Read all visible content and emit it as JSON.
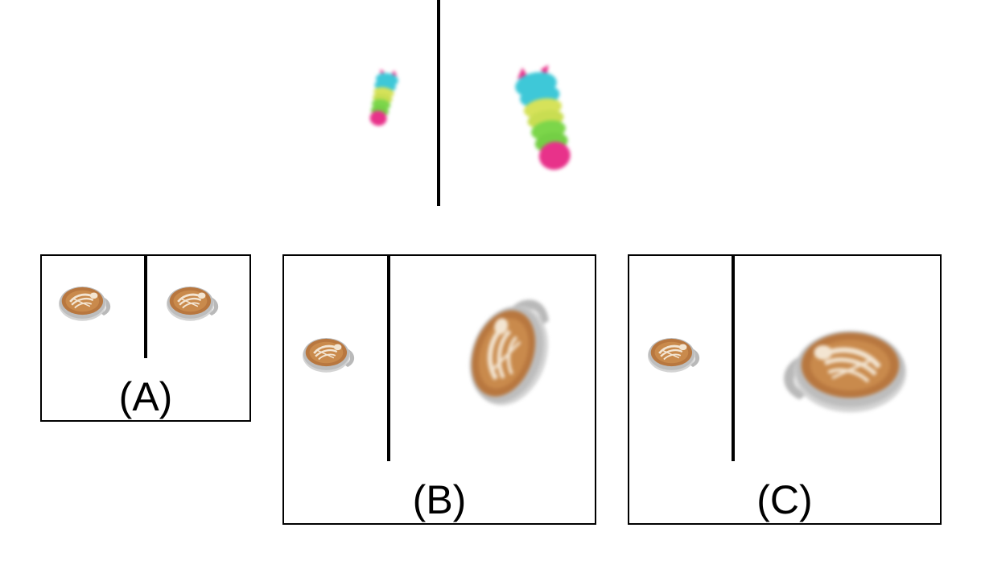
{
  "options": [
    {
      "id": "A",
      "label": "(A)"
    },
    {
      "id": "B",
      "label": "(B)"
    },
    {
      "id": "C",
      "label": "(C)"
    }
  ],
  "colors": {
    "pink": "#e8328a",
    "cyan": "#3ec8d8",
    "yellow": "#d6e25a",
    "green": "#7cd64a",
    "coffee": "#b8773f",
    "foam": "#f3e5d2",
    "cup": "#c8c8c8"
  },
  "icons": {
    "stacked_figure": "stacked-figure-icon",
    "latte_cup": "latte-cup-icon"
  }
}
